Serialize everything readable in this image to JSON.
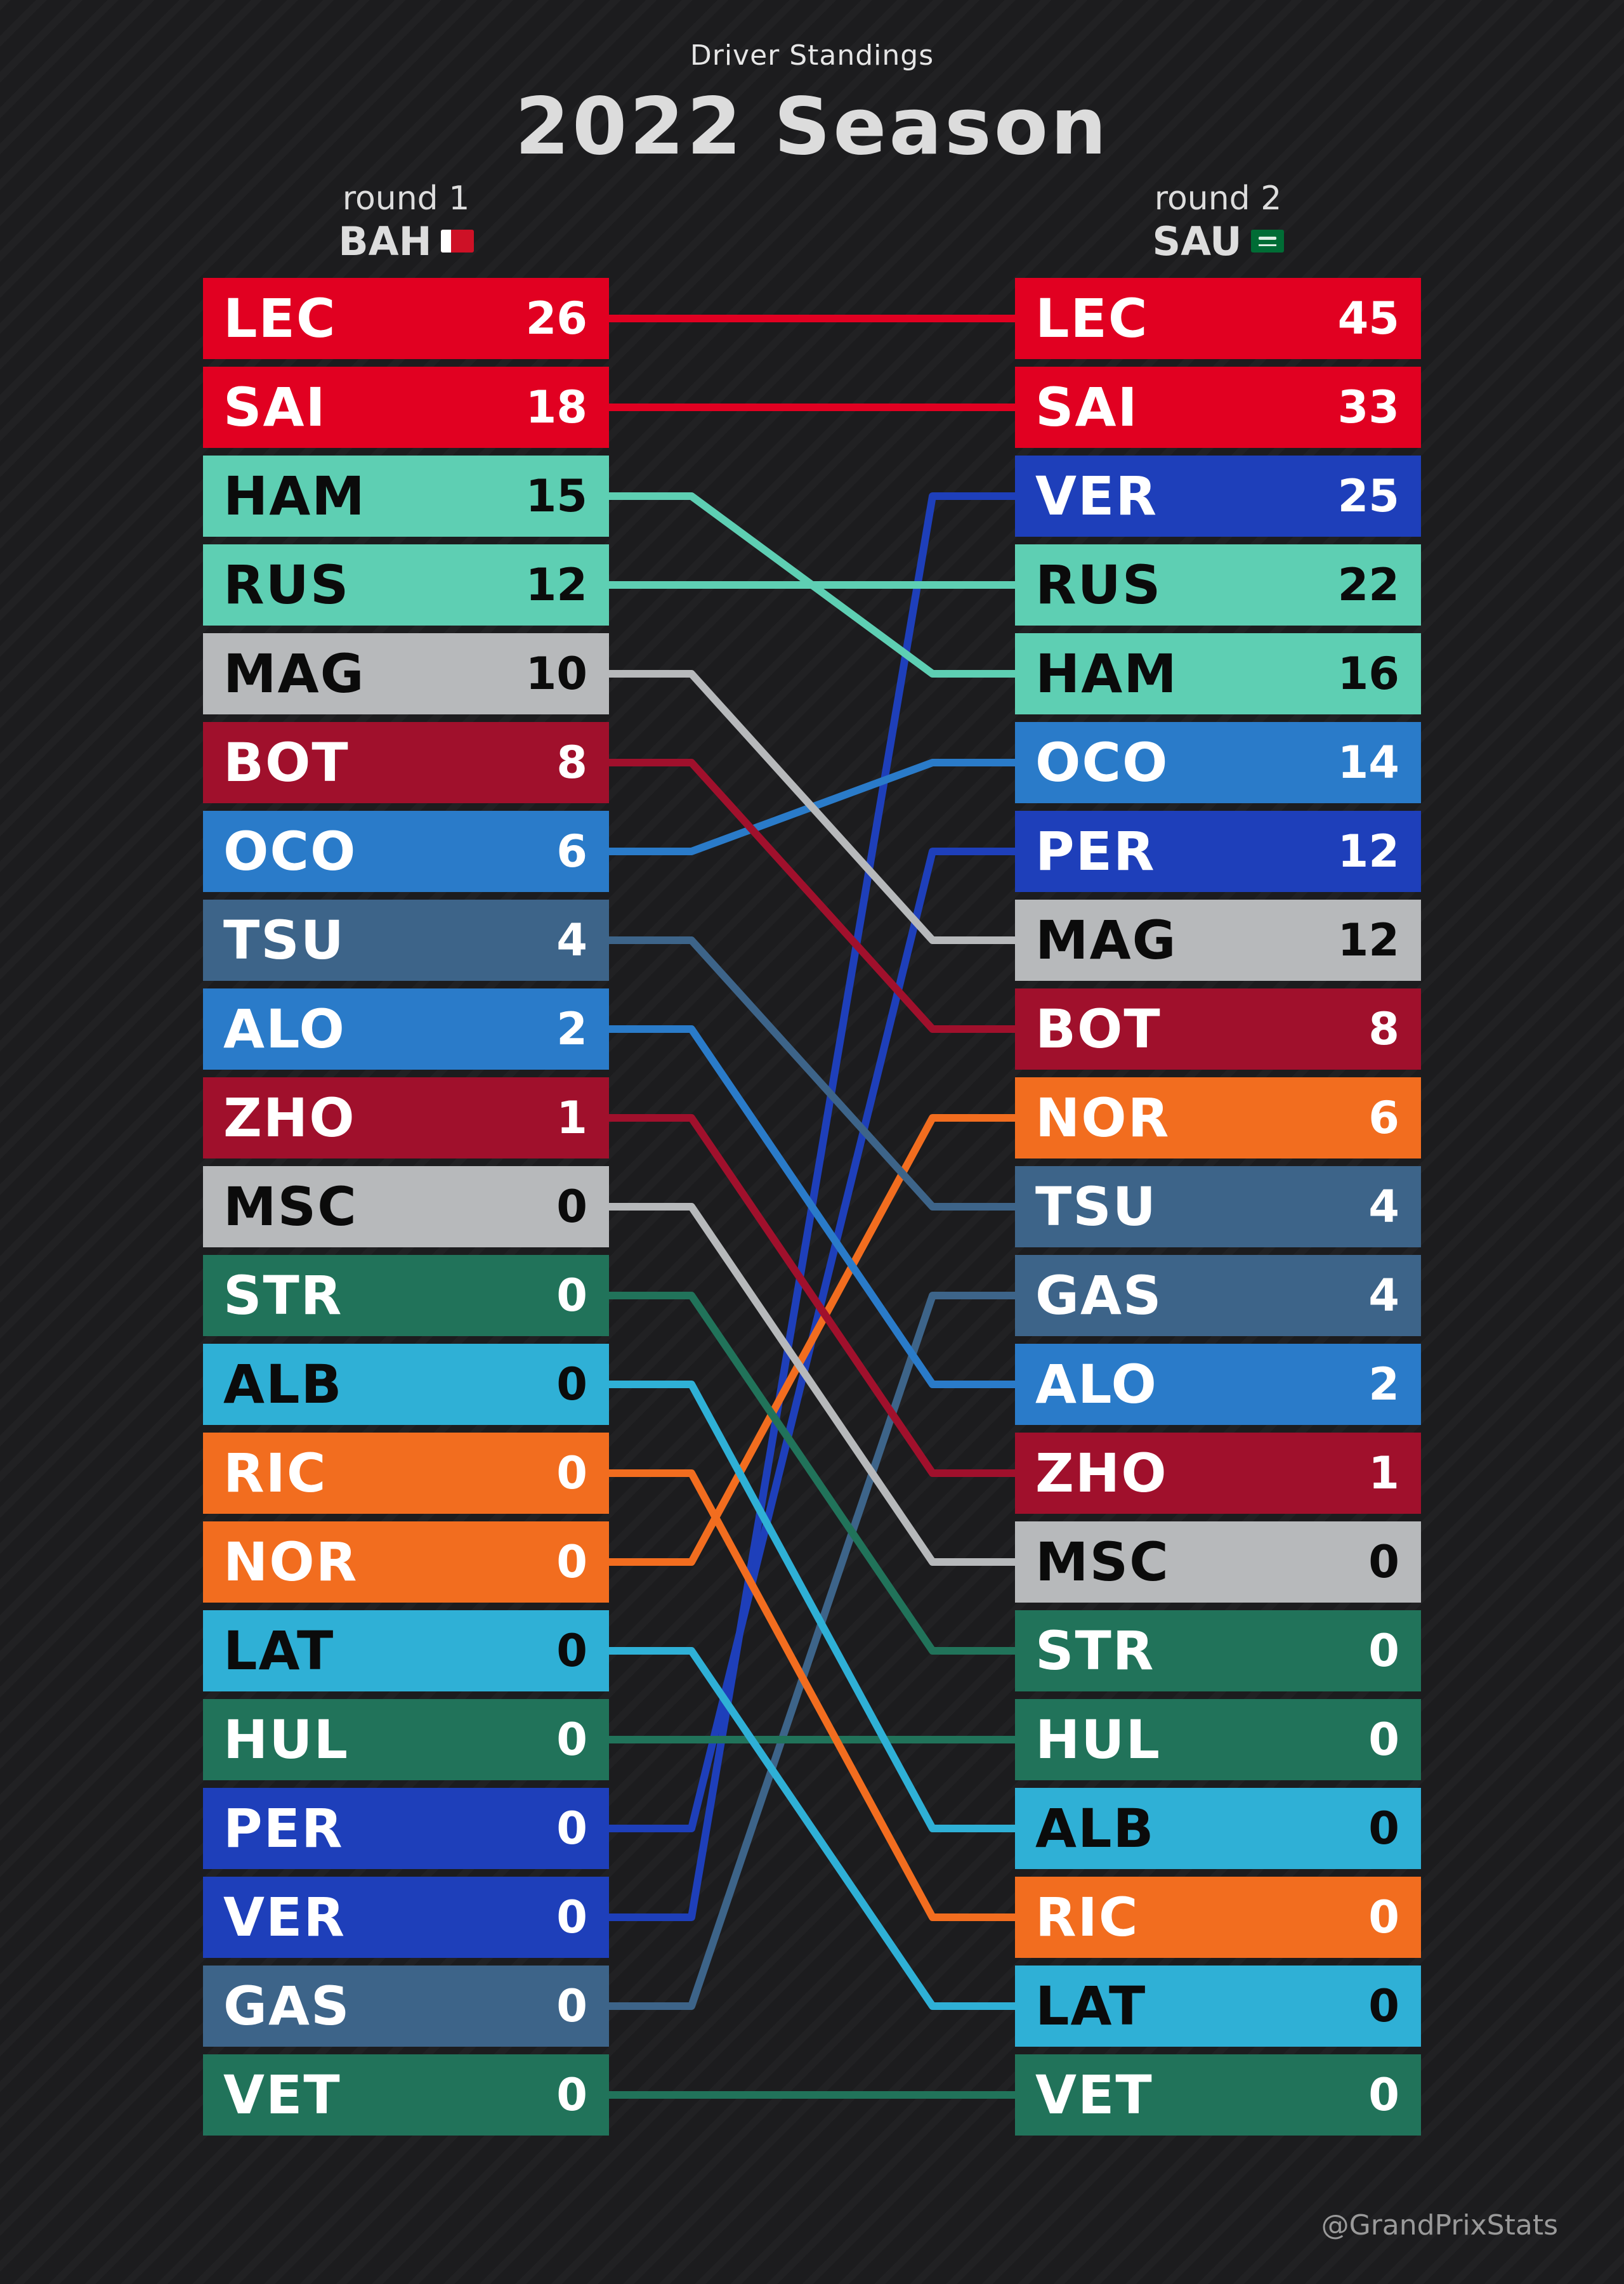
{
  "header": {
    "subtitle": "Driver Standings",
    "title": "2022 Season"
  },
  "credit": "@GrandPrixStats",
  "colors": {
    "ferrari": "#e10021",
    "mercedes": "#5ecfb3",
    "haas": "#b7b9bb",
    "alfaromeo": "#a0102c",
    "alpine": "#2a7bc9",
    "alphatauri": "#3d6489",
    "astonmartin": "#21735a",
    "williams": "#2fb0d6",
    "mclaren": "#f26d1f",
    "redbull": "#1e3fba"
  },
  "text_colors": {
    "light": "#ffffff",
    "dark": "#0b0b0b"
  },
  "chart_data": {
    "type": "table",
    "title": "2022 Season",
    "subtitle": "Driver Standings",
    "rounds": [
      {
        "label": "round 1",
        "code": "BAH",
        "flag_icon": "bahrain-flag-icon",
        "standings": [
          {
            "driver": "LEC",
            "points": 26,
            "team": "ferrari"
          },
          {
            "driver": "SAI",
            "points": 18,
            "team": "ferrari"
          },
          {
            "driver": "HAM",
            "points": 15,
            "team": "mercedes"
          },
          {
            "driver": "RUS",
            "points": 12,
            "team": "mercedes"
          },
          {
            "driver": "MAG",
            "points": 10,
            "team": "haas"
          },
          {
            "driver": "BOT",
            "points": 8,
            "team": "alfaromeo"
          },
          {
            "driver": "OCO",
            "points": 6,
            "team": "alpine"
          },
          {
            "driver": "TSU",
            "points": 4,
            "team": "alphatauri"
          },
          {
            "driver": "ALO",
            "points": 2,
            "team": "alpine"
          },
          {
            "driver": "ZHO",
            "points": 1,
            "team": "alfaromeo"
          },
          {
            "driver": "MSC",
            "points": 0,
            "team": "haas"
          },
          {
            "driver": "STR",
            "points": 0,
            "team": "astonmartin"
          },
          {
            "driver": "ALB",
            "points": 0,
            "team": "williams"
          },
          {
            "driver": "RIC",
            "points": 0,
            "team": "mclaren"
          },
          {
            "driver": "NOR",
            "points": 0,
            "team": "mclaren"
          },
          {
            "driver": "LAT",
            "points": 0,
            "team": "williams"
          },
          {
            "driver": "HUL",
            "points": 0,
            "team": "astonmartin"
          },
          {
            "driver": "PER",
            "points": 0,
            "team": "redbull"
          },
          {
            "driver": "VER",
            "points": 0,
            "team": "redbull"
          },
          {
            "driver": "GAS",
            "points": 0,
            "team": "alphatauri"
          },
          {
            "driver": "VET",
            "points": 0,
            "team": "astonmartin"
          }
        ]
      },
      {
        "label": "round 2",
        "code": "SAU",
        "flag_icon": "saudi-arabia-flag-icon",
        "standings": [
          {
            "driver": "LEC",
            "points": 45,
            "team": "ferrari"
          },
          {
            "driver": "SAI",
            "points": 33,
            "team": "ferrari"
          },
          {
            "driver": "VER",
            "points": 25,
            "team": "redbull"
          },
          {
            "driver": "RUS",
            "points": 22,
            "team": "mercedes"
          },
          {
            "driver": "HAM",
            "points": 16,
            "team": "mercedes"
          },
          {
            "driver": "OCO",
            "points": 14,
            "team": "alpine"
          },
          {
            "driver": "PER",
            "points": 12,
            "team": "redbull"
          },
          {
            "driver": "MAG",
            "points": 12,
            "team": "haas"
          },
          {
            "driver": "BOT",
            "points": 8,
            "team": "alfaromeo"
          },
          {
            "driver": "NOR",
            "points": 6,
            "team": "mclaren"
          },
          {
            "driver": "TSU",
            "points": 4,
            "team": "alphatauri"
          },
          {
            "driver": "GAS",
            "points": 4,
            "team": "alphatauri"
          },
          {
            "driver": "ALO",
            "points": 2,
            "team": "alpine"
          },
          {
            "driver": "ZHO",
            "points": 1,
            "team": "alfaromeo"
          },
          {
            "driver": "MSC",
            "points": 0,
            "team": "haas"
          },
          {
            "driver": "STR",
            "points": 0,
            "team": "astonmartin"
          },
          {
            "driver": "HUL",
            "points": 0,
            "team": "astonmartin"
          },
          {
            "driver": "ALB",
            "points": 0,
            "team": "williams"
          },
          {
            "driver": "RIC",
            "points": 0,
            "team": "mclaren"
          },
          {
            "driver": "LAT",
            "points": 0,
            "team": "williams"
          },
          {
            "driver": "VET",
            "points": 0,
            "team": "astonmartin"
          }
        ]
      }
    ]
  }
}
